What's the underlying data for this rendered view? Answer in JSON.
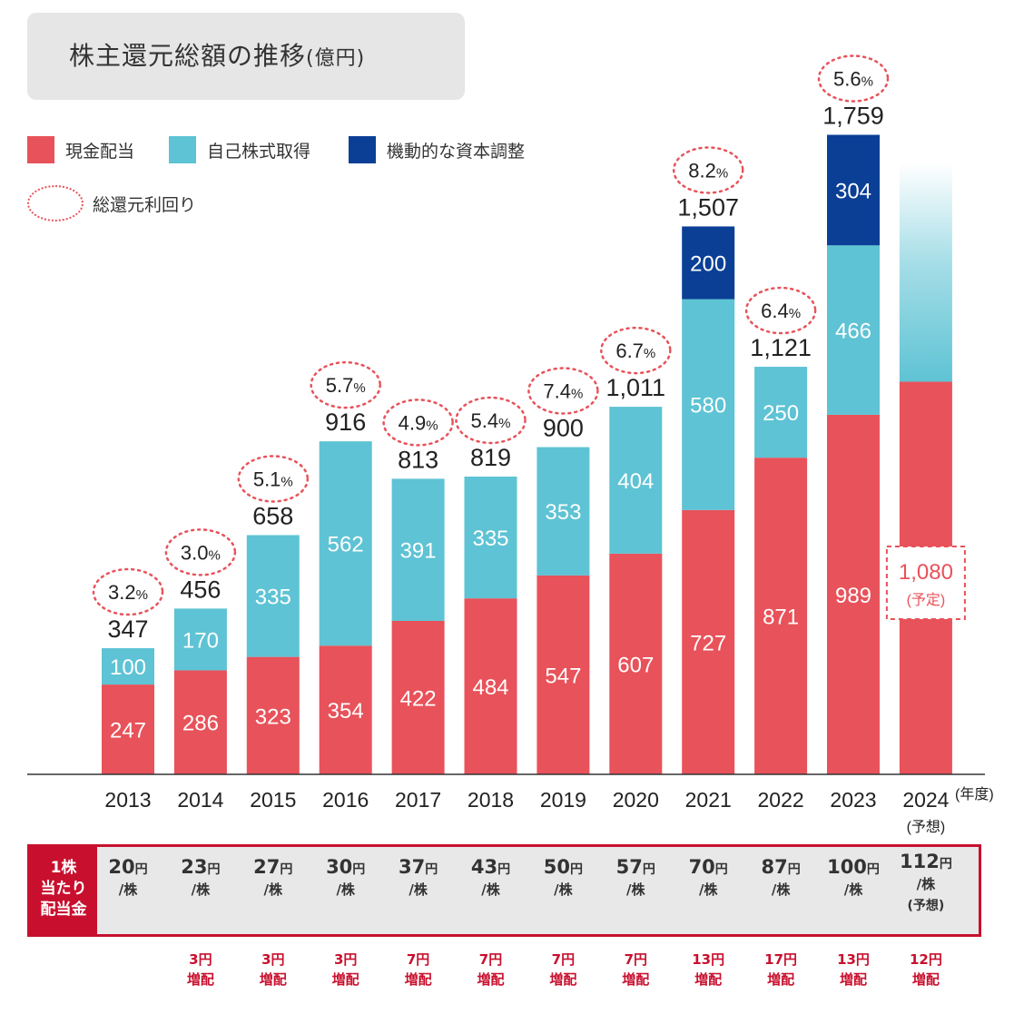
{
  "title": "株主還元総額の推移",
  "title_unit": "(億円)",
  "legend": {
    "cash": "現金配当",
    "buyback": "自己株式取得",
    "capital": "機動的な資本調整",
    "yield": "総還元利回り"
  },
  "colors": {
    "cash": "#e8525a",
    "buyback": "#5ec3d4",
    "capital": "#0b3f96",
    "yield": "#e8525a"
  },
  "chart_data": {
    "type": "bar",
    "stacked": true,
    "categories": [
      "2013",
      "2014",
      "2015",
      "2016",
      "2017",
      "2018",
      "2019",
      "2020",
      "2021",
      "2022",
      "2023",
      "2024"
    ],
    "category_notes": [
      "",
      "",
      "",
      "",
      "",
      "",
      "",
      "",
      "",
      "",
      "",
      "(予想)"
    ],
    "x_unit": "(年度)",
    "series": [
      {
        "name": "現金配当",
        "values": [
          247,
          286,
          323,
          354,
          422,
          484,
          547,
          607,
          727,
          871,
          989,
          1080
        ]
      },
      {
        "name": "自己株式取得",
        "values": [
          100,
          170,
          335,
          562,
          391,
          335,
          353,
          404,
          580,
          250,
          466,
          null
        ]
      },
      {
        "name": "機動的な資本調整",
        "values": [
          null,
          null,
          null,
          null,
          null,
          null,
          null,
          null,
          200,
          null,
          304,
          null
        ]
      }
    ],
    "totals": [
      "347",
      "456",
      "658",
      "916",
      "813",
      "819",
      "900",
      "1,011",
      "1,507",
      "1,121",
      "1,759",
      null
    ],
    "yields": [
      "3.2",
      "3.0",
      "5.1",
      "5.7",
      "4.9",
      "5.4",
      "7.4",
      "6.7",
      "8.2",
      "6.4",
      "5.6",
      null
    ],
    "yield_unit": "%",
    "forecast": {
      "value_label": "1,080",
      "note": "(予定)"
    },
    "ylim": [
      0,
      1800
    ]
  },
  "dividend_table": {
    "header": [
      "1株",
      "当たり",
      "配当金"
    ],
    "unit": "円",
    "per_share": "/株",
    "values": [
      "20",
      "23",
      "27",
      "30",
      "37",
      "43",
      "50",
      "57",
      "70",
      "87",
      "100",
      "112"
    ],
    "last_note": "(予想)",
    "increase_unit": "円",
    "increase_label": "増配",
    "increases": [
      "",
      "3",
      "3",
      "3",
      "7",
      "7",
      "7",
      "7",
      "13",
      "17",
      "13",
      "12"
    ]
  }
}
